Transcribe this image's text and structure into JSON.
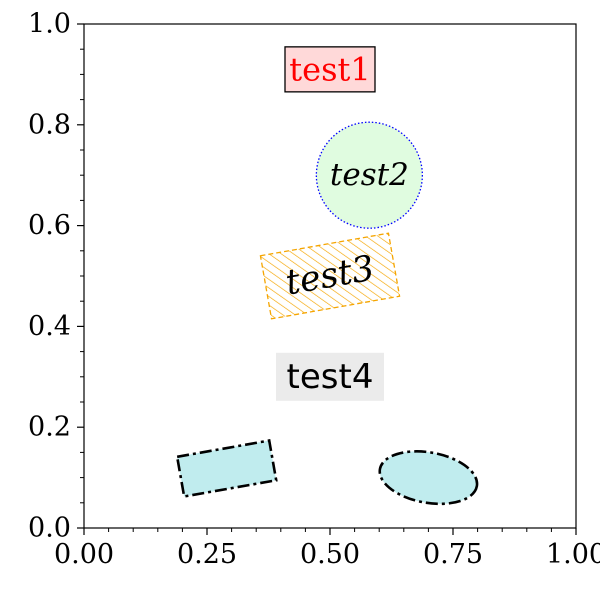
{
  "chart_data": {
    "type": "scatter",
    "title": "",
    "xlabel": "",
    "ylabel": "",
    "xlim": [
      0.0,
      1.0
    ],
    "ylim": [
      0.0,
      1.0
    ],
    "grid": false,
    "xticks": [
      0.0,
      0.25,
      0.5,
      0.75,
      1.0
    ],
    "xtick_labels": [
      "0.00",
      "0.25",
      "0.50",
      "0.75",
      "1.00"
    ],
    "yticks": [
      0.0,
      0.2,
      0.4,
      0.6,
      0.8,
      1.0
    ],
    "ytick_labels": [
      "0.0",
      "0.2",
      "0.4",
      "0.6",
      "0.8",
      "1.0"
    ],
    "annotations": [
      {
        "text": "test1",
        "x": 0.5,
        "y": 0.91,
        "box": "rectangle",
        "text_color": "#ff0000",
        "face_color": "#ffd9d9",
        "edge_color": "#000000",
        "font": "serif"
      },
      {
        "text": "test2",
        "x": 0.58,
        "y": 0.7,
        "box": "circle",
        "text_color": "#000000",
        "face_color": "#e0fce0",
        "edge_color": "#0000ff",
        "edge_style": "dotted",
        "font": "serif-italic"
      },
      {
        "text": "test3",
        "x": 0.5,
        "y": 0.5,
        "box": "hatched-rectangle",
        "rotation": 10,
        "text_color": "#000000",
        "hatch_color": "#f5a500",
        "font": "serif-italic"
      },
      {
        "text": "test4",
        "x": 0.5,
        "y": 0.3,
        "box": "rectangle",
        "text_color": "#000000",
        "face_color": "#ebebeb",
        "font": "sans"
      }
    ],
    "patches": [
      {
        "shape": "rectangle",
        "center": [
          0.29,
          0.118
        ],
        "width": 0.19,
        "height": 0.08,
        "rotation": 10,
        "face_color": "#c0ecee",
        "edge_color": "#000000",
        "linestyle": "dashdot"
      },
      {
        "shape": "ellipse",
        "center": [
          0.7,
          0.1
        ],
        "width": 0.2,
        "height": 0.1,
        "rotation": -10,
        "face_color": "#c0ecee",
        "edge_color": "#000000",
        "linestyle": "dashdot"
      }
    ]
  }
}
